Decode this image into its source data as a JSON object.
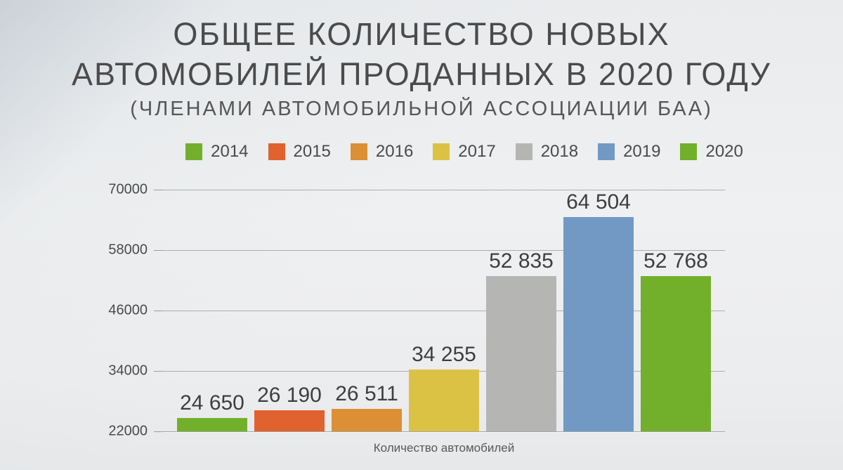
{
  "title": {
    "line1": "ОБЩЕЕ КОЛИЧЕСТВО НОВЫХ",
    "line2": "АВТОМОБИЛЕЙ ПРОДАННЫХ В 2020 ГОДУ",
    "subtitle": "(ЧЛЕНАМИ АВТОМОБИЛЬНОЙ АССОЦИАЦИИ БАА)"
  },
  "chart_data": {
    "type": "bar",
    "title": "Общее количество новых автомобилей проданных в 2020 году (членами автомобильной ассоциации БАА)",
    "categories": [
      "2014",
      "2015",
      "2016",
      "2017",
      "2018",
      "2019",
      "2020"
    ],
    "values": [
      24650,
      26190,
      26511,
      34255,
      52835,
      64504,
      52768
    ],
    "value_labels": [
      "24 650",
      "26 190",
      "26 511",
      "34 255",
      "52 835",
      "64 504",
      "52 768"
    ],
    "bar_colors": [
      "#72b02c",
      "#e0622e",
      "#dc8f35",
      "#dcc244",
      "#b5b5b4",
      "#7199c4",
      "#72b02c"
    ],
    "xlabel": "Количество автомобилей",
    "ylabel": "",
    "ylim": [
      22000,
      70000
    ],
    "yticks": [
      22000,
      34000,
      46000,
      58000,
      70000
    ],
    "ytick_labels": [
      "22000",
      "34000",
      "46000",
      "58000",
      "70000"
    ],
    "grid": true,
    "legend_position": "top"
  },
  "colors": {
    "title_text": "#4b4b4b",
    "axis_text": "#4a4a4a",
    "value_label_text": "#3e3e3e",
    "gridline": "#abafb2",
    "background": "#eff0f1"
  }
}
